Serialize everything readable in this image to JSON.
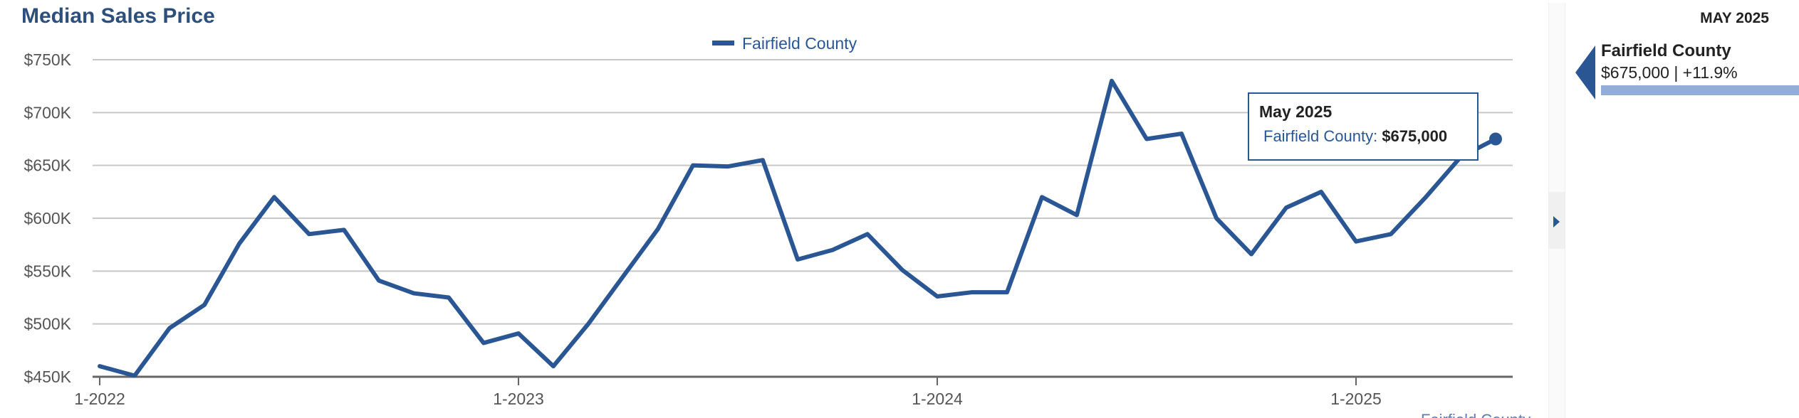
{
  "chart_data": {
    "type": "line",
    "title": "Median Sales Price",
    "legend": {
      "placement": "top-center",
      "entries": [
        "Fairfield County"
      ]
    },
    "x_tick_labels": [
      "1-2022",
      "1-2023",
      "1-2024",
      "1-2025"
    ],
    "y_tick_labels": [
      "$450K",
      "$500K",
      "$550K",
      "$600K",
      "$650K",
      "$700K",
      "$750K"
    ],
    "y_ticks": [
      450000,
      500000,
      550000,
      600000,
      650000,
      700000,
      750000
    ],
    "ylim": [
      450000,
      750000
    ],
    "grid": true,
    "x": [
      "2022-01",
      "2022-02",
      "2022-03",
      "2022-04",
      "2022-05",
      "2022-06",
      "2022-07",
      "2022-08",
      "2022-09",
      "2022-10",
      "2022-11",
      "2022-12",
      "2023-01",
      "2023-02",
      "2023-03",
      "2023-04",
      "2023-05",
      "2023-06",
      "2023-07",
      "2023-08",
      "2023-09",
      "2023-10",
      "2023-11",
      "2023-12",
      "2024-01",
      "2024-02",
      "2024-03",
      "2024-04",
      "2024-05",
      "2024-06",
      "2024-07",
      "2024-08",
      "2024-09",
      "2024-10",
      "2024-11",
      "2024-12",
      "2025-01",
      "2025-02",
      "2025-03",
      "2025-04",
      "2025-05"
    ],
    "series": [
      {
        "name": "Fairfield County",
        "color": "#2a5694",
        "values": [
          460000,
          451000,
          496000,
          518000,
          576000,
          620000,
          585000,
          589000,
          541000,
          529000,
          525000,
          482000,
          491000,
          460000,
          500000,
          545000,
          590000,
          650000,
          649000,
          655000,
          561000,
          570000,
          585000,
          551000,
          526000,
          530000,
          530000,
          620000,
          603000,
          730000,
          675000,
          680000,
          600000,
          566000,
          610000,
          625000,
          578000,
          585000,
          620000,
          658000,
          675000
        ]
      }
    ],
    "highlight": {
      "index": 40,
      "label": "May 2025",
      "series": "Fairfield County",
      "value_text": "$675,000"
    },
    "bottom_label": "Fairfield County"
  },
  "tooltip": {
    "title": "May 2025",
    "series_label": "Fairfield County:",
    "value": "$675,000"
  },
  "side_panel": {
    "date": "MAY 2025",
    "name": "Fairfield County",
    "value": "$675,000 | +11.9%",
    "color": "#2a5694"
  }
}
